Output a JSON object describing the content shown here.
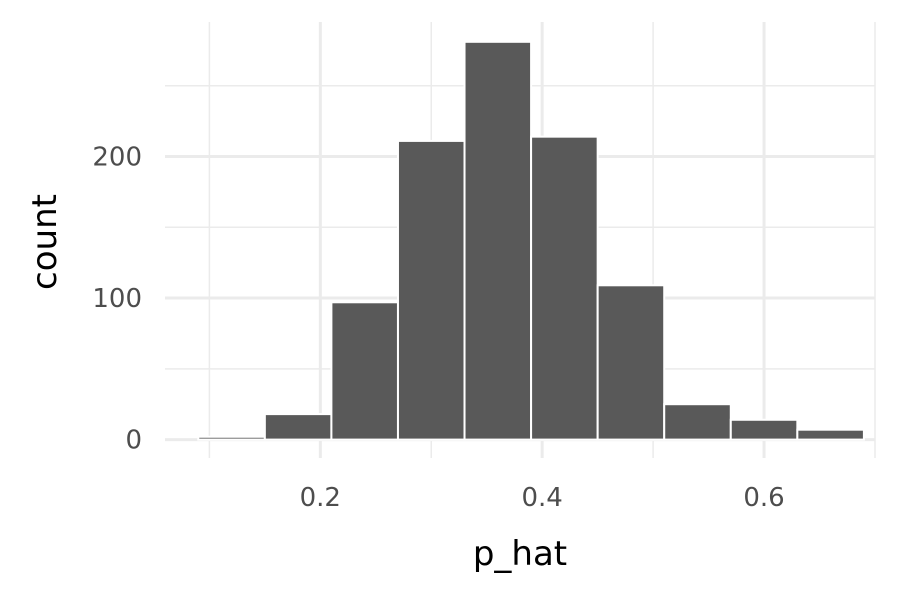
{
  "chart_data": {
    "type": "bar",
    "subtype": "histogram",
    "title": "",
    "xlabel": "p_hat",
    "ylabel": "count",
    "bins": [
      {
        "x_min": 0.09,
        "x_max": 0.15,
        "count": 2
      },
      {
        "x_min": 0.15,
        "x_max": 0.21,
        "count": 18
      },
      {
        "x_min": 0.21,
        "x_max": 0.27,
        "count": 97
      },
      {
        "x_min": 0.27,
        "x_max": 0.33,
        "count": 211
      },
      {
        "x_min": 0.33,
        "x_max": 0.39,
        "count": 281
      },
      {
        "x_min": 0.39,
        "x_max": 0.45,
        "count": 214
      },
      {
        "x_min": 0.45,
        "x_max": 0.51,
        "count": 109
      },
      {
        "x_min": 0.51,
        "x_max": 0.57,
        "count": 25
      },
      {
        "x_min": 0.57,
        "x_max": 0.63,
        "count": 14
      },
      {
        "x_min": 0.63,
        "x_max": 0.69,
        "count": 7
      }
    ],
    "xlim": [
      0.06,
      0.7
    ],
    "ylim": [
      -13,
      295
    ],
    "x_ticks": [
      0.2,
      0.4,
      0.6
    ],
    "x_tick_labels": [
      "0.2",
      "0.4",
      "0.6"
    ],
    "x_minor_ticks": [
      0.1,
      0.3,
      0.5,
      0.7
    ],
    "y_ticks": [
      0,
      100,
      200
    ],
    "y_tick_labels": [
      "0",
      "100",
      "200"
    ],
    "y_minor_ticks": [
      50,
      150,
      250
    ],
    "grid": true,
    "colors": {
      "bar_fill": "#595959",
      "bar_outline": "#ffffff",
      "grid": "#ebebeb",
      "tick_text": "#4d4d4d",
      "title_text": "#000000"
    }
  }
}
